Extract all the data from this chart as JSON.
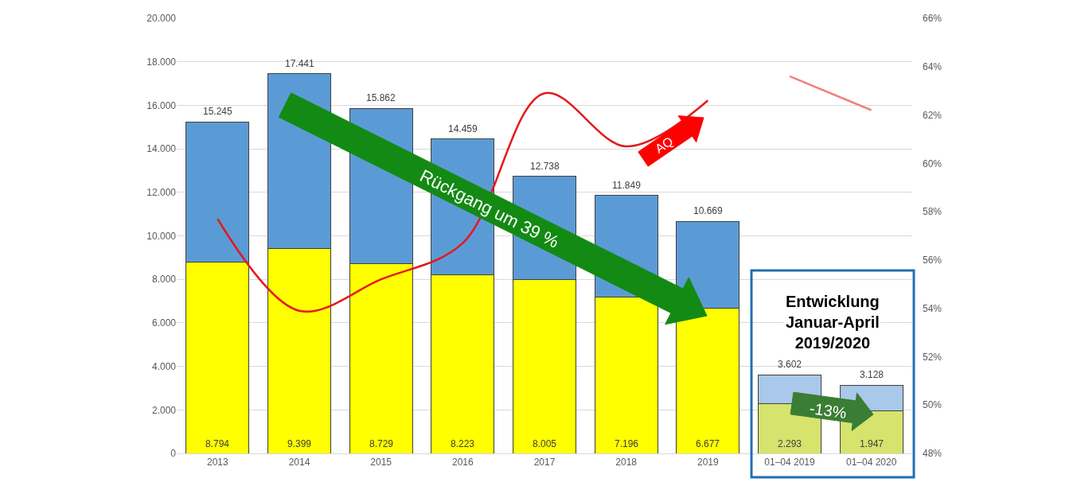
{
  "chart_data": {
    "type": "bar",
    "stacked": true,
    "categories": [
      "2013",
      "2014",
      "2015",
      "2016",
      "2017",
      "2018",
      "2019",
      "01–04 2019",
      "01–04 2020"
    ],
    "series": [
      {
        "colors": [
          "#ffff00",
          "#ffff00",
          "#ffff00",
          "#ffff00",
          "#ffff00",
          "#ffff00",
          "#ffff00",
          "#d6e36d",
          "#d6e36d"
        ],
        "values": [
          8794,
          9399,
          8729,
          8223,
          8005,
          7196,
          6677,
          2293,
          1947
        ],
        "value_labels": [
          "8.794",
          "9.399",
          "8.729",
          "8.223",
          "8.005",
          "7.196",
          "6.677",
          "2.293",
          "1.947"
        ]
      },
      {
        "colors": [
          "#5b9bd5",
          "#5b9bd5",
          "#5b9bd5",
          "#5b9bd5",
          "#5b9bd5",
          "#5b9bd5",
          "#5b9bd5",
          "#a9c8ea",
          "#a9c8ea"
        ],
        "values": [
          6451,
          8042,
          7133,
          6236,
          4733,
          4653,
          3992,
          1309,
          1181
        ]
      },
      {
        "type": "line",
        "axis": "y2",
        "color": "#e31a1c",
        "values": [
          57.7,
          53.9,
          55.2,
          56.7,
          62.9,
          60.7,
          62.6,
          null,
          null
        ]
      },
      {
        "type": "line",
        "axis": "y2",
        "color": "#f08080",
        "values": [
          null,
          null,
          null,
          null,
          null,
          null,
          null,
          63.6,
          62.2
        ]
      }
    ],
    "totals": [
      "15.245",
      "17.441",
      "15.862",
      "14.459",
      "12.738",
      "11.849",
      "10.669",
      "3.602",
      "3.128"
    ],
    "ylim": [
      0,
      20000
    ],
    "yticks": [
      {
        "value": 0,
        "label": "0"
      },
      {
        "value": 2000,
        "label": "2.000"
      },
      {
        "value": 4000,
        "label": "4.000"
      },
      {
        "value": 6000,
        "label": "6.000"
      },
      {
        "value": 8000,
        "label": "8.000"
      },
      {
        "value": 10000,
        "label": "10.000"
      },
      {
        "value": 12000,
        "label": "12.000"
      },
      {
        "value": 14000,
        "label": "14.000"
      },
      {
        "value": 16000,
        "label": "16.000"
      },
      {
        "value": 18000,
        "label": "18.000"
      },
      {
        "value": 20000,
        "label": "20.000"
      }
    ],
    "y2lim": [
      48,
      66
    ],
    "y2ticks": [
      {
        "value": 48,
        "label": "48%"
      },
      {
        "value": 50,
        "label": "50%"
      },
      {
        "value": 52,
        "label": "52%"
      },
      {
        "value": 54,
        "label": "54%"
      },
      {
        "value": 56,
        "label": "56%"
      },
      {
        "value": 58,
        "label": "58%"
      },
      {
        "value": 60,
        "label": "60%"
      },
      {
        "value": 62,
        "label": "62%"
      },
      {
        "value": 64,
        "label": "64%"
      },
      {
        "value": 66,
        "label": "66%"
      }
    ],
    "grid": "y",
    "annotations": [
      "Entwicklung\nJanuar-April\n2019/2020",
      "Rückgang um 39 %",
      "AQ",
      "-13%"
    ]
  }
}
